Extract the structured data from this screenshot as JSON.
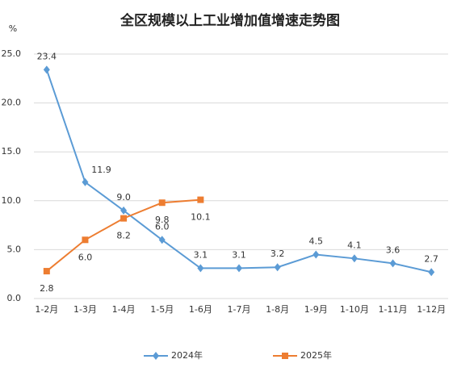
{
  "chart_data": {
    "type": "line",
    "title": "全区规模以上工业增加值增速走势图",
    "y_unit": "%",
    "categories": [
      "1-2月",
      "1-3月",
      "1-4月",
      "1-5月",
      "1-6月",
      "1-7月",
      "1-8月",
      "1-9月",
      "1-10月",
      "1-11月",
      "1-12月"
    ],
    "series": [
      {
        "name": "2024年",
        "color": "#5b9bd5",
        "marker": "diamond",
        "values": [
          23.4,
          11.9,
          9.0,
          6.0,
          3.1,
          3.1,
          3.2,
          4.5,
          4.1,
          3.6,
          2.7
        ],
        "value_labels": [
          "23.4",
          "11.9",
          "9.0",
          "6.0",
          "3.1",
          "3.1",
          "3.2",
          "4.5",
          "4.1",
          "3.6",
          "2.7"
        ]
      },
      {
        "name": "2025年",
        "color": "#ed7d31",
        "marker": "square",
        "values": [
          2.8,
          6.0,
          8.2,
          9.8,
          10.1,
          null,
          null,
          null,
          null,
          null,
          null
        ],
        "value_labels": [
          "2.8",
          "6.0",
          "8.2",
          "9.8",
          "10.1",
          null,
          null,
          null,
          null,
          null,
          null
        ]
      }
    ],
    "ylim": [
      0,
      25
    ],
    "yticks": [
      {
        "value": 0,
        "label": "0.0"
      },
      {
        "value": 5,
        "label": "5.0"
      },
      {
        "value": 10,
        "label": "10.0"
      },
      {
        "value": 15,
        "label": "15.0"
      },
      {
        "value": 20,
        "label": "20.0"
      },
      {
        "value": 25,
        "label": "25.0"
      }
    ],
    "grid": true,
    "legend": "bottom"
  }
}
